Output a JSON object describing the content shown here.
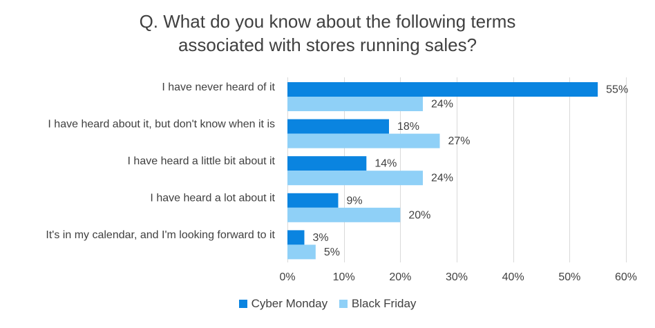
{
  "chart_data": {
    "type": "bar",
    "orientation": "horizontal",
    "title": [
      "Q. What do you know about the following terms",
      "associated with stores running sales?"
    ],
    "categories": [
      "I have never heard of it",
      "I have heard about it, but don't know when it is",
      "I have heard a little bit about it",
      "I have heard a lot about it",
      "It's in my calendar, and I'm looking forward to it"
    ],
    "series": [
      {
        "name": "Cyber Monday",
        "color": "#0a84e0",
        "values": [
          55,
          18,
          14,
          9,
          3
        ],
        "labels": [
          "55%",
          "18%",
          "14%",
          "9%",
          "3%"
        ]
      },
      {
        "name": "Black Friday",
        "color": "#8fd0f7",
        "values": [
          24,
          27,
          24,
          20,
          5
        ],
        "labels": [
          "24%",
          "27%",
          "24%",
          "20%",
          "5%"
        ]
      }
    ],
    "xlim": [
      0,
      60
    ],
    "x_ticks": [
      0,
      10,
      20,
      30,
      40,
      50,
      60
    ],
    "x_tick_labels": [
      "0%",
      "10%",
      "20%",
      "30%",
      "40%",
      "50%",
      "60%"
    ],
    "grid": "vertical",
    "legend": "bottom"
  }
}
